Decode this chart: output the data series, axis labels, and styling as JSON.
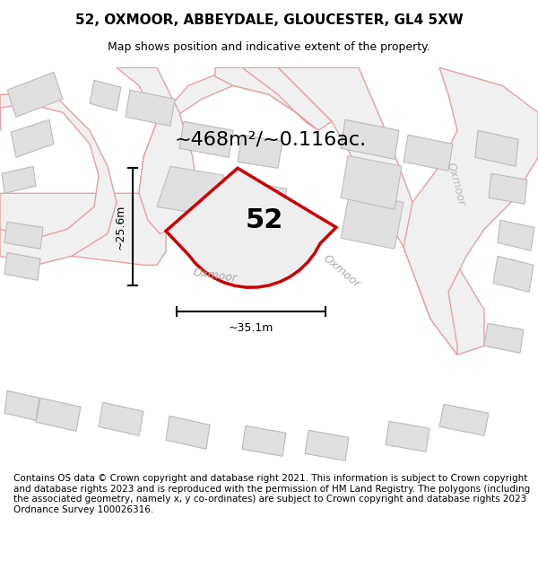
{
  "title": "52, OXMOOR, ABBEYDALE, GLOUCESTER, GL4 5XW",
  "subtitle": "Map shows position and indicative extent of the property.",
  "footer": "Contains OS data © Crown copyright and database right 2021. This information is subject to Crown copyright and database rights 2023 and is reproduced with the permission of HM Land Registry. The polygons (including the associated geometry, namely x, y co-ordinates) are subject to Crown copyright and database rights 2023 Ordnance Survey 100026316.",
  "area_label": "~468m²/~0.116ac.",
  "plot_number": "52",
  "dim_width": "~35.1m",
  "dim_height": "~25.6m",
  "bg_color": "#f7f7f7",
  "road_fill": "#f0f0f0",
  "road_outline": "#e8a0a0",
  "building_fill": "#e0e0e0",
  "building_stroke": "#bbbbbb",
  "plot_stroke": "#cc0000",
  "plot_fill": "#eeeeee",
  "title_fontsize": 11,
  "subtitle_fontsize": 9,
  "footer_fontsize": 7.5,
  "area_label_fontsize": 16,
  "plot_label_fontsize": 22,
  "road_label_fontsize": 9,
  "dim_fontsize": 9
}
